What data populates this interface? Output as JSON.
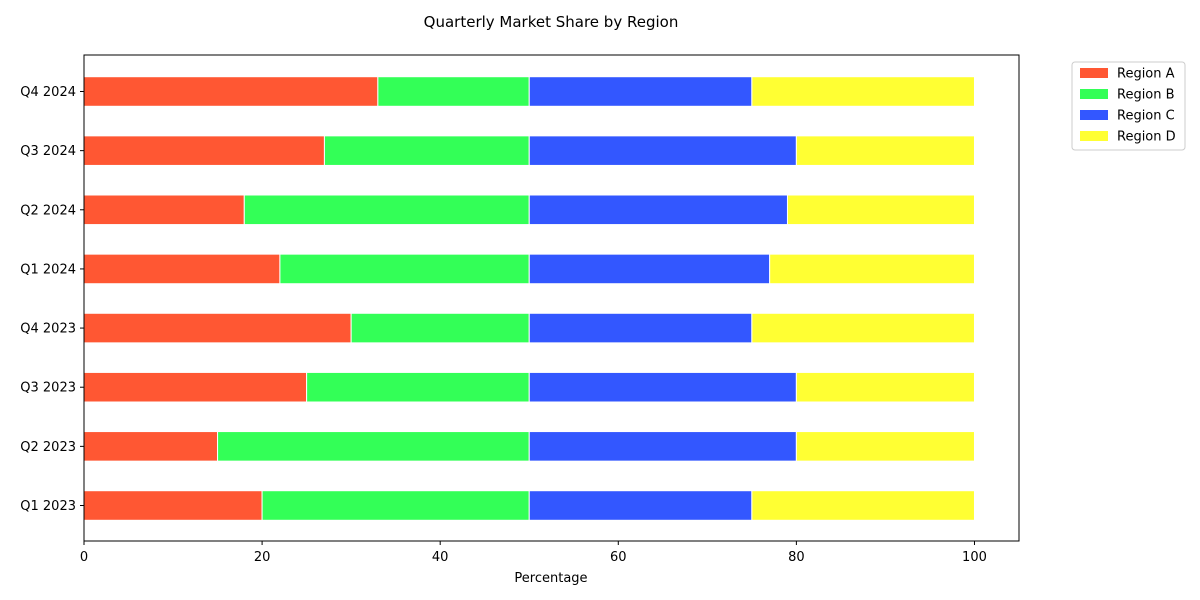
{
  "chart_data": {
    "type": "bar",
    "orientation": "horizontal",
    "stacked": true,
    "title": "Quarterly Market Share by Region",
    "xlabel": "Percentage",
    "ylabel": "",
    "xlim": [
      0,
      105
    ],
    "x_ticks": [
      0,
      20,
      40,
      60,
      80,
      100
    ],
    "grid": false,
    "legend_position": "top-right outside",
    "categories": [
      "Q1 2023",
      "Q2 2023",
      "Q3 2023",
      "Q4 2023",
      "Q1 2024",
      "Q2 2024",
      "Q3 2024",
      "Q4 2024"
    ],
    "series": [
      {
        "name": "Region A",
        "color": "#ff5733",
        "values": [
          20,
          15,
          25,
          30,
          22,
          18,
          27,
          33
        ]
      },
      {
        "name": "Region B",
        "color": "#33ff57",
        "values": [
          30,
          35,
          25,
          20,
          28,
          32,
          23,
          17
        ]
      },
      {
        "name": "Region C",
        "color": "#3357ff",
        "values": [
          25,
          30,
          30,
          25,
          27,
          29,
          30,
          25
        ]
      },
      {
        "name": "Region D",
        "color": "#ffff33",
        "values": [
          25,
          20,
          20,
          25,
          23,
          21,
          20,
          25
        ]
      }
    ]
  }
}
